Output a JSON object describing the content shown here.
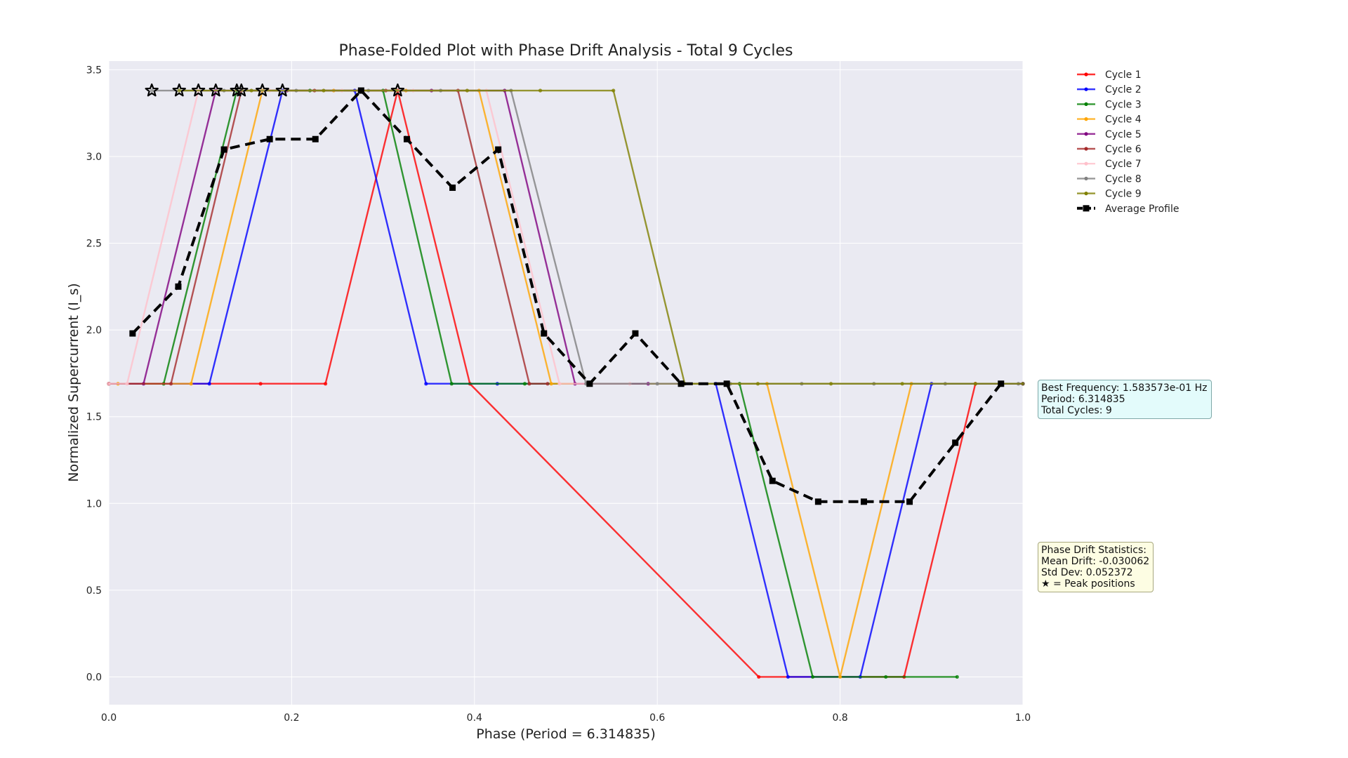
{
  "chart_data": {
    "type": "line",
    "title": "Phase-Folded Plot with Phase Drift Analysis - Total 9 Cycles",
    "xlabel": "Phase (Period = 6.314835)",
    "ylabel": "Normalized Supercurrent (I_s)",
    "xlim": [
      0.0,
      1.0
    ],
    "ylim": [
      -0.16,
      3.55
    ],
    "xticks": [
      "0.0",
      "0.2",
      "0.4",
      "0.6",
      "0.8",
      "1.0"
    ],
    "xtick_values": [
      0.0,
      0.2,
      0.4,
      0.6,
      0.8,
      1.0
    ],
    "yticks": [
      "0.0",
      "0.5",
      "1.0",
      "1.5",
      "2.0",
      "2.5",
      "3.0",
      "3.5"
    ],
    "ytick_values": [
      0.0,
      0.5,
      1.0,
      1.5,
      2.0,
      2.5,
      3.0,
      3.5
    ],
    "grid": true,
    "background": "#eaeaf2",
    "legend_position": "outside-top-right",
    "series": [
      {
        "name": "Cycle 1",
        "color": "#ff0000",
        "points": [
          [
            0.0,
            1.69
          ],
          [
            0.166,
            1.69
          ],
          [
            0.237,
            1.69
          ],
          [
            0.316,
            3.38
          ],
          [
            0.395,
            1.69
          ],
          [
            0.711,
            0.0
          ],
          [
            0.87,
            0.0
          ],
          [
            0.948,
            1.69
          ],
          [
            1.0,
            1.69
          ]
        ]
      },
      {
        "name": "Cycle 2",
        "color": "#0000ff",
        "points": [
          [
            0.0,
            1.69
          ],
          [
            0.11,
            1.69
          ],
          [
            0.19,
            3.38
          ],
          [
            0.269,
            3.38
          ],
          [
            0.347,
            1.69
          ],
          [
            0.425,
            1.69
          ],
          [
            0.664,
            1.69
          ],
          [
            0.743,
            0.0
          ],
          [
            0.822,
            0.0
          ],
          [
            0.9,
            1.69
          ],
          [
            1.0,
            1.69
          ]
        ]
      },
      {
        "name": "Cycle 3",
        "color": "#008000",
        "points": [
          [
            0.0,
            1.69
          ],
          [
            0.06,
            1.69
          ],
          [
            0.14,
            3.38
          ],
          [
            0.22,
            3.38
          ],
          [
            0.3,
            3.38
          ],
          [
            0.375,
            1.69
          ],
          [
            0.455,
            1.69
          ],
          [
            0.69,
            1.69
          ],
          [
            0.77,
            0.0
          ],
          [
            0.85,
            0.0
          ],
          [
            0.928,
            0.0
          ]
        ]
      },
      {
        "name": "Cycle 4",
        "color": "#ffa500",
        "points": [
          [
            0.0,
            1.69
          ],
          [
            0.01,
            1.69
          ],
          [
            0.09,
            1.69
          ],
          [
            0.168,
            3.38
          ],
          [
            0.246,
            3.38
          ],
          [
            0.325,
            3.38
          ],
          [
            0.405,
            3.38
          ],
          [
            0.484,
            1.69
          ],
          [
            0.72,
            1.69
          ],
          [
            0.8,
            0.0
          ],
          [
            0.878,
            1.69
          ]
        ]
      },
      {
        "name": "Cycle 5",
        "color": "#800080",
        "points": [
          [
            0.0,
            1.69
          ],
          [
            0.038,
            1.69
          ],
          [
            0.117,
            3.38
          ],
          [
            0.195,
            3.38
          ],
          [
            0.274,
            3.38
          ],
          [
            0.353,
            3.38
          ],
          [
            0.433,
            3.38
          ],
          [
            0.51,
            1.69
          ],
          [
            0.59,
            1.69
          ]
        ]
      },
      {
        "name": "Cycle 6",
        "color": "#a52a2a",
        "points": [
          [
            0.0,
            1.69
          ],
          [
            0.068,
            1.69
          ],
          [
            0.145,
            3.38
          ],
          [
            0.225,
            3.38
          ],
          [
            0.303,
            3.38
          ],
          [
            0.382,
            3.38
          ],
          [
            0.46,
            1.69
          ],
          [
            0.48,
            1.69
          ]
        ]
      },
      {
        "name": "Cycle 7",
        "color": "#ffc0cb",
        "points": [
          [
            0.0,
            1.69
          ],
          [
            0.02,
            1.69
          ],
          [
            0.098,
            3.38
          ],
          [
            0.176,
            3.38
          ],
          [
            0.255,
            3.38
          ],
          [
            0.333,
            3.38
          ],
          [
            0.413,
            3.38
          ],
          [
            0.493,
            1.69
          ],
          [
            0.57,
            1.69
          ]
        ]
      },
      {
        "name": "Cycle 8",
        "color": "#808080",
        "points": [
          [
            0.047,
            3.38
          ],
          [
            0.126,
            3.38
          ],
          [
            0.205,
            3.38
          ],
          [
            0.284,
            3.38
          ],
          [
            0.363,
            3.38
          ],
          [
            0.44,
            3.38
          ],
          [
            0.522,
            1.69
          ],
          [
            0.6,
            1.69
          ],
          [
            0.68,
            1.69
          ],
          [
            0.758,
            1.69
          ],
          [
            0.837,
            1.69
          ],
          [
            0.915,
            1.69
          ],
          [
            0.995,
            1.69
          ]
        ]
      },
      {
        "name": "Cycle 9",
        "color": "#808000",
        "points": [
          [
            0.077,
            3.38
          ],
          [
            0.156,
            3.38
          ],
          [
            0.235,
            3.38
          ],
          [
            0.314,
            3.38
          ],
          [
            0.392,
            3.38
          ],
          [
            0.472,
            3.38
          ],
          [
            0.552,
            3.38
          ],
          [
            0.63,
            1.69
          ],
          [
            0.71,
            1.69
          ],
          [
            0.79,
            1.69
          ],
          [
            0.868,
            1.69
          ],
          [
            0.948,
            1.69
          ],
          [
            1.0,
            1.69
          ]
        ]
      }
    ],
    "average_profile": {
      "name": "Average Profile",
      "color": "#000000",
      "points": [
        [
          0.026,
          1.98
        ],
        [
          0.076,
          2.25
        ],
        [
          0.126,
          3.04
        ],
        [
          0.176,
          3.1
        ],
        [
          0.226,
          3.1
        ],
        [
          0.276,
          3.38
        ],
        [
          0.326,
          3.1
        ],
        [
          0.376,
          2.82
        ],
        [
          0.426,
          3.04
        ],
        [
          0.476,
          1.98
        ],
        [
          0.526,
          1.69
        ],
        [
          0.576,
          1.98
        ],
        [
          0.626,
          1.69
        ],
        [
          0.676,
          1.69
        ],
        [
          0.726,
          1.13
        ],
        [
          0.776,
          1.01
        ],
        [
          0.826,
          1.01
        ],
        [
          0.876,
          1.01
        ],
        [
          0.926,
          1.35
        ],
        [
          0.976,
          1.69
        ]
      ]
    },
    "peak_markers": {
      "label": "★ = Peak positions",
      "points": [
        [
          0.047,
          3.38
        ],
        [
          0.077,
          3.38
        ],
        [
          0.098,
          3.38
        ],
        [
          0.117,
          3.38
        ],
        [
          0.14,
          3.38
        ],
        [
          0.145,
          3.38
        ],
        [
          0.168,
          3.38
        ],
        [
          0.19,
          3.38
        ],
        [
          0.316,
          3.38
        ]
      ]
    }
  },
  "info": {
    "best_frequency": "Best Frequency: 1.583573e-01 Hz",
    "period": "Period: 6.314835",
    "total_cycles": "Total Cycles: 9"
  },
  "drift_stats": {
    "title": "Phase Drift Statistics:",
    "mean_drift": "Mean Drift: -0.030062",
    "std_dev": "Std Dev: 0.052372",
    "peak_note": "★ = Peak positions"
  }
}
